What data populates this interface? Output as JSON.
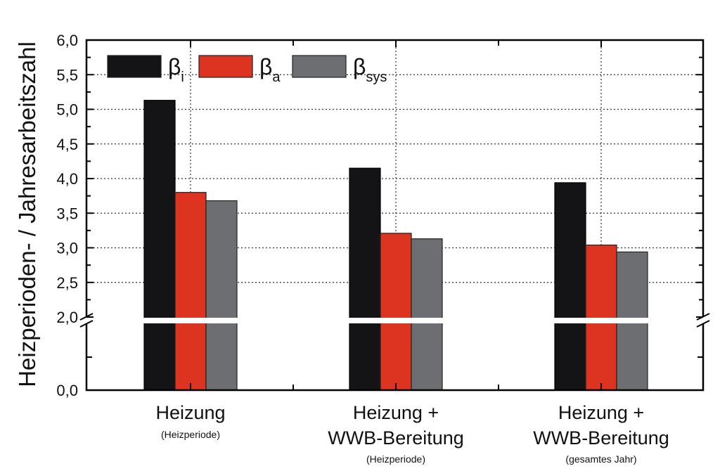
{
  "chart_data": {
    "type": "bar",
    "title": "",
    "xlabel": "",
    "ylabel": "Heizperioden- / Jahresarbeitszahl",
    "ylim": [
      0,
      6.0
    ],
    "axis_break": [
      2.0,
      2.0
    ],
    "ytick_labels": [
      "0,0",
      "2,0",
      "2,5",
      "3,0",
      "3,5",
      "4,0",
      "4,5",
      "5,0",
      "5,5",
      "6,0"
    ],
    "yticks": [
      0,
      2.0,
      2.5,
      3.0,
      3.5,
      4.0,
      4.5,
      5.0,
      5.5,
      6.0
    ],
    "grid": true,
    "legend_position": "top-left",
    "categories": [
      {
        "main": [
          "Heizung"
        ],
        "sub": "(Heizperiode)"
      },
      {
        "main": [
          "Heizung +",
          "WWB-Bereitung"
        ],
        "sub": "(Heizperiode)"
      },
      {
        "main": [
          "Heizung +",
          "WWB-Bereitung"
        ],
        "sub": "(gesamtes Jahr)"
      }
    ],
    "series": [
      {
        "name": "β",
        "subscript": "i",
        "color": "#141416",
        "values": [
          5.13,
          4.15,
          3.94
        ]
      },
      {
        "name": "β",
        "subscript": "a",
        "color": "#dc3420",
        "values": [
          3.8,
          3.21,
          3.04
        ]
      },
      {
        "name": "β",
        "subscript": "sys",
        "color": "#6c6e71",
        "values": [
          3.68,
          3.13,
          2.94
        ]
      }
    ]
  }
}
